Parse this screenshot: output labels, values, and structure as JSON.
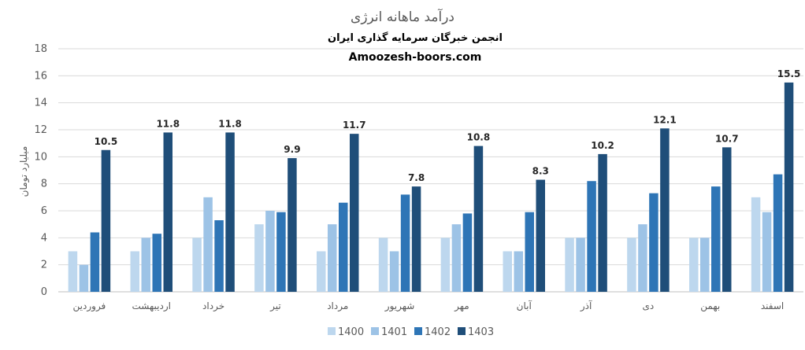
{
  "chart_data": {
    "type": "bar",
    "title": "درآمد ماهانه انرژی",
    "subtitle": "انجمن خبرگان سرمایه گذاری ایران",
    "watermark": "Amoozesh-boors.com",
    "ylabel": "میلیارد تومان",
    "ylim": [
      0,
      18
    ],
    "yticks": [
      0,
      2,
      4,
      6,
      8,
      10,
      12,
      14,
      16,
      18
    ],
    "grid": true,
    "legend_position": "bottom",
    "categories": [
      "فروردین",
      "اردیبهشت",
      "خرداد",
      "تیر",
      "مرداد",
      "شهریور",
      "مهر",
      "آبان",
      "آذر",
      "دی",
      "بهمن",
      "اسفند"
    ],
    "series": [
      {
        "name": "1400",
        "color": "#BDD7EE",
        "values": [
          3,
          3,
          4,
          5,
          3,
          4,
          4,
          3,
          4,
          4,
          4,
          7
        ]
      },
      {
        "name": "1401",
        "color": "#9DC3E6",
        "values": [
          2,
          4,
          7,
          6,
          5,
          3,
          5,
          3,
          4,
          5,
          4,
          5.9
        ]
      },
      {
        "name": "1402",
        "color": "#2E75B6",
        "values": [
          4.4,
          4.3,
          5.3,
          5.9,
          6.6,
          7.2,
          5.8,
          5.9,
          8.2,
          7.3,
          7.8,
          8.7
        ]
      },
      {
        "name": "1403",
        "color": "#1F4E79",
        "values": [
          10.5,
          11.8,
          11.8,
          9.9,
          11.7,
          7.8,
          10.8,
          8.3,
          10.2,
          12.1,
          10.7,
          15.5
        ]
      }
    ],
    "data_labels_series": "1403",
    "data_labels": [
      "10.5",
      "11.8",
      "11.8",
      "9.9",
      "11.7",
      "7.8",
      "10.8",
      "8.3",
      "10.2",
      "12.1",
      "10.7",
      "15.5"
    ]
  }
}
